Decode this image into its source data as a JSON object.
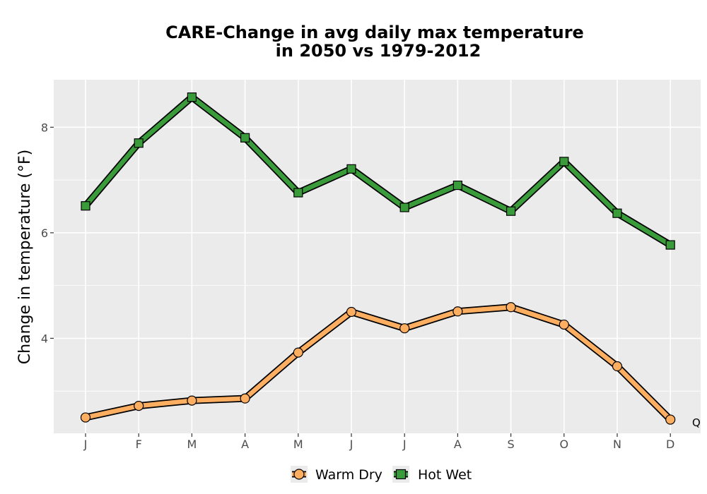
{
  "chart_data": {
    "type": "line",
    "title": "CARE-Change in avg daily max temperature",
    "subtitle": "in 2050 vs 1979-2012",
    "xlabel": "",
    "ylabel": "Change in temperature (°F)",
    "categories": [
      "J",
      "F",
      "M",
      "A",
      "M",
      "J",
      "J",
      "A",
      "S",
      "O",
      "N",
      "D"
    ],
    "ylim": [
      2.2,
      8.9
    ],
    "yticks": [
      4,
      6,
      8
    ],
    "grid": true,
    "legend_position": "bottom",
    "annotation": "Q",
    "series": [
      {
        "name": "Warm Dry",
        "color": "#fdae61",
        "marker": "circle",
        "values": [
          2.5,
          2.72,
          2.82,
          2.86,
          3.73,
          4.5,
          4.19,
          4.51,
          4.59,
          4.26,
          3.47,
          2.46
        ]
      },
      {
        "name": "Hot Wet",
        "color": "#3a9b3a",
        "marker": "square",
        "values": [
          6.51,
          7.7,
          8.57,
          7.8,
          6.76,
          7.21,
          6.48,
          6.9,
          6.41,
          7.35,
          6.37,
          5.77
        ]
      }
    ]
  }
}
